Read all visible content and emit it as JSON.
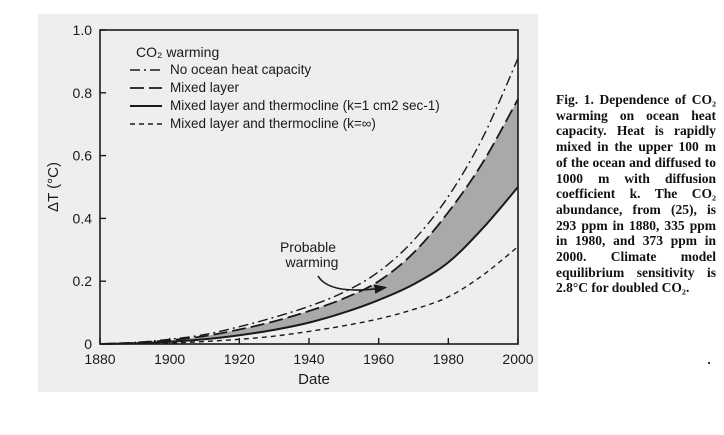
{
  "caption": "Fig. 1. Dependence of CO₂ warming on ocean heat capacity. Heat is rapidly mixed in the upper 100 m of the ocean and diffused to 1000 m with diffusion coefficient k. The CO₂ abundance, from (25), is 293 ppm in 1880, 335 ppm in 1980, and 373 ppm in 2000. Climate model equilibrium sensitivity is 2.8°C for doubled CO₂.",
  "chart_data": {
    "type": "line",
    "xlabel": "Date",
    "ylabel": "ΔT (°C)",
    "xlim": [
      1880,
      2000
    ],
    "ylim": [
      0,
      1.0
    ],
    "xticks": [
      "1880",
      "1900",
      "1920",
      "1940",
      "1960",
      "1980",
      "2000"
    ],
    "yticks": [
      "0",
      "0.2",
      "0.4",
      "0.6",
      "0.8",
      "1.0"
    ],
    "legend_title": "CO₂ warming",
    "legend_position": "top-left",
    "grid": false,
    "x": [
      1880,
      1890,
      1900,
      1910,
      1920,
      1930,
      1940,
      1950,
      1960,
      1970,
      1980,
      1990,
      2000
    ],
    "series": [
      {
        "name": "No ocean heat capacity",
        "style": "dash-dot",
        "values": [
          0,
          0.005,
          0.015,
          0.03,
          0.055,
          0.085,
          0.12,
          0.165,
          0.23,
          0.33,
          0.47,
          0.66,
          0.91
        ]
      },
      {
        "name": "Mixed layer",
        "style": "long-dash",
        "values": [
          0,
          0.004,
          0.012,
          0.025,
          0.046,
          0.072,
          0.105,
          0.145,
          0.2,
          0.29,
          0.42,
          0.58,
          0.78
        ]
      },
      {
        "name": "Mixed layer and thermocline (k=1 cm2 sec-1)",
        "style": "solid",
        "values": [
          0,
          0.002,
          0.007,
          0.015,
          0.028,
          0.045,
          0.068,
          0.1,
          0.14,
          0.19,
          0.26,
          0.37,
          0.5
        ]
      },
      {
        "name": "Mixed layer and thermocline (k=∞)",
        "style": "short-dash",
        "values": [
          0,
          0.001,
          0.003,
          0.008,
          0.015,
          0.025,
          0.04,
          0.058,
          0.08,
          0.11,
          0.15,
          0.22,
          0.31
        ]
      }
    ],
    "shaded_band": {
      "between": [
        "Mixed layer",
        "Mixed layer and thermocline (k=1 cm2 sec-1)"
      ],
      "color": "#a9a9a9"
    },
    "annotation": {
      "line1": "Probable",
      "line2": "warming",
      "points_to": {
        "x": 1962,
        "y": 0.18
      }
    }
  },
  "colors": {
    "panel": "#eeeeee",
    "ink": "#1a1a1a",
    "band": "#a9a9a9"
  }
}
